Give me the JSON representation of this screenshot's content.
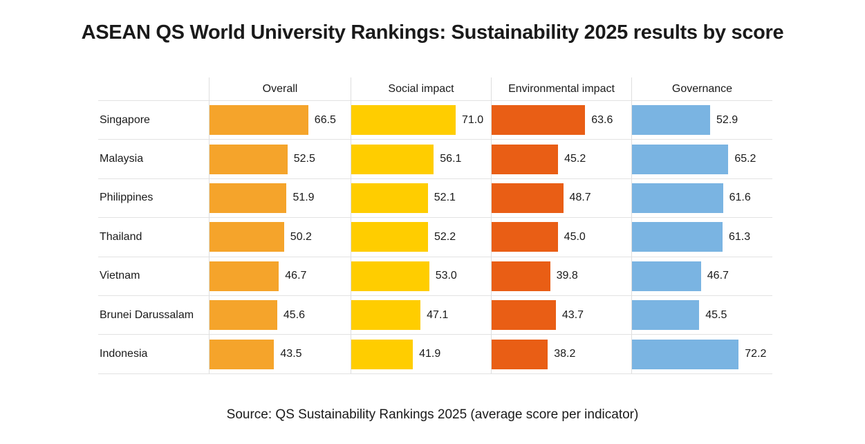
{
  "title": "ASEAN QS World University Rankings: Sustainability 2025 results by score",
  "source": "Source: QS Sustainability Rankings 2025 (average score per indicator)",
  "colors": {
    "overall": "#F5A42B",
    "social_impact": "#FFCD00",
    "environmental_impact": "#E95E15",
    "governance": "#7AB4E2",
    "grid_line": "#E2E2E2",
    "text": "#1A1A1A",
    "background": "#FFFFFF"
  },
  "chart_data": {
    "type": "bar",
    "orientation": "horizontal",
    "value_axis_max": 95,
    "grid": "table-lines",
    "legend_position": "column-headers",
    "categories": [
      "Singapore",
      "Malaysia",
      "Philippines",
      "Thailand",
      "Vietnam",
      "Brunei Darussalam",
      "Indonesia"
    ],
    "series": [
      {
        "key": "overall",
        "name": "Overall",
        "color": "#F5A42B",
        "values": [
          66.5,
          52.5,
          51.9,
          50.2,
          46.7,
          45.6,
          43.5
        ]
      },
      {
        "key": "social-impact",
        "name": "Social impact",
        "color": "#FFCD00",
        "values": [
          71.0,
          56.1,
          52.1,
          52.2,
          53.0,
          47.1,
          41.9
        ]
      },
      {
        "key": "environmental-impact",
        "name": "Environmental impact",
        "color": "#E95E15",
        "values": [
          63.6,
          45.2,
          48.7,
          45.0,
          39.8,
          43.7,
          38.2
        ]
      },
      {
        "key": "governance",
        "name": "Governance",
        "color": "#7AB4E2",
        "values": [
          52.9,
          65.2,
          61.6,
          61.3,
          46.7,
          45.5,
          72.2
        ]
      }
    ],
    "value_label_format": "one-decimal"
  }
}
